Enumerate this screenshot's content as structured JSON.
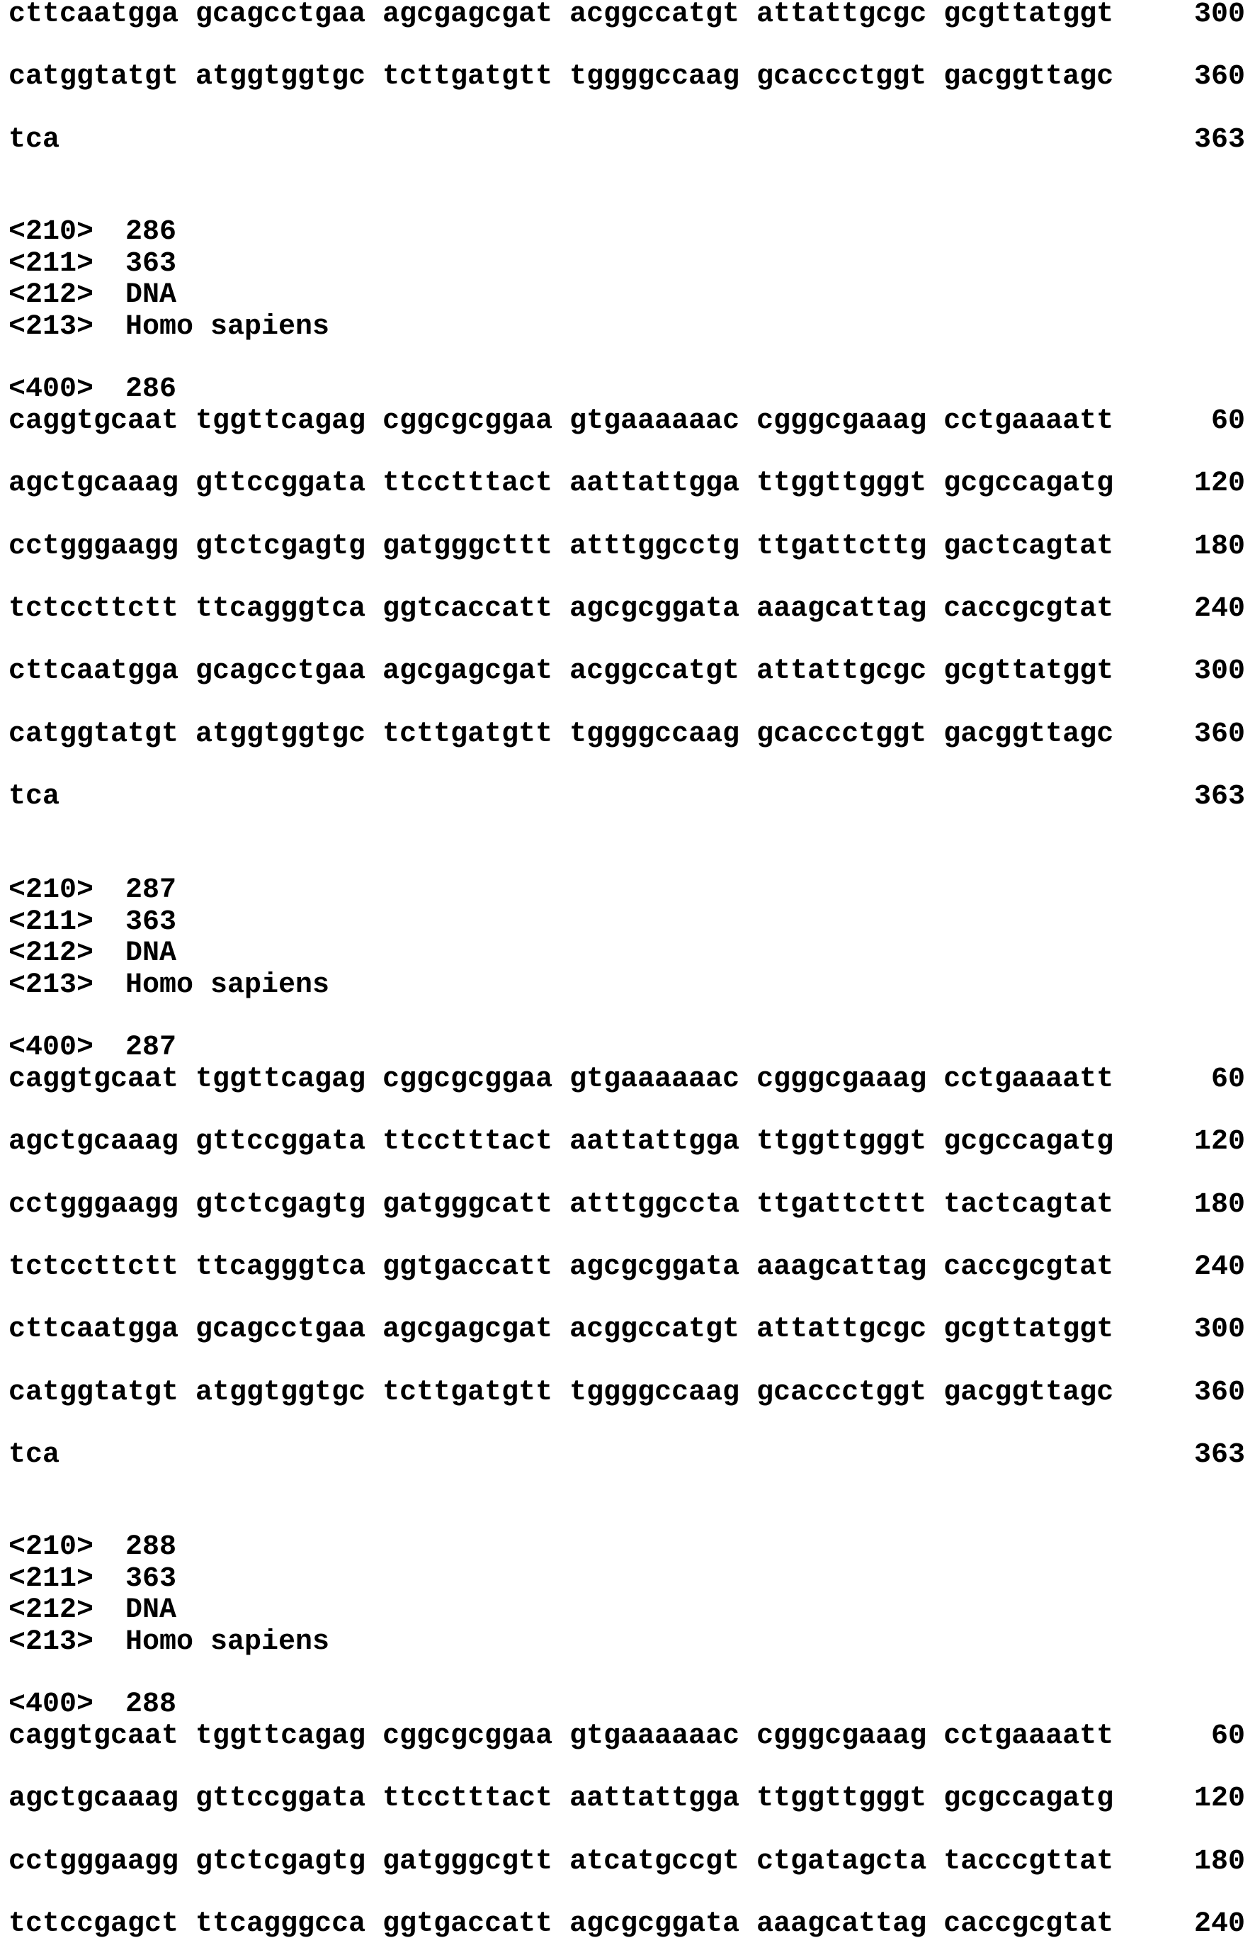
{
  "continuation": {
    "lines": [
      {
        "seq": "cttcaatgga gcagcctgaa agcgagcgat acggccatgt attattgcgc gcgttatggt",
        "pos": "300"
      },
      {
        "seq": "catggtatgt atggtggtgc tcttgatgtt tggggccaag gcaccctggt gacggttagc",
        "pos": "360"
      },
      {
        "seq": "tca",
        "pos": "363"
      }
    ]
  },
  "entries": [
    {
      "fields": [
        {
          "tag": "<210>",
          "value": "286"
        },
        {
          "tag": "<211>",
          "value": "363"
        },
        {
          "tag": "<212>",
          "value": "DNA"
        },
        {
          "tag": "<213>",
          "value": "Homo sapiens"
        }
      ],
      "seq_header": {
        "tag": "<400>",
        "value": "286"
      },
      "lines": [
        {
          "seq": "caggtgcaat tggttcagag cggcgcggaa gtgaaaaaac cgggcgaaag cctgaaaatt",
          "pos": "60"
        },
        {
          "seq": "agctgcaaag gttccggata ttcctttact aattattgga ttggttgggt gcgccagatg",
          "pos": "120"
        },
        {
          "seq": "cctgggaagg gtctcgagtg gatgggcttt atttggcctg ttgattcttg gactcagtat",
          "pos": "180"
        },
        {
          "seq": "tctccttctt ttcagggtca ggtcaccatt agcgcggata aaagcattag caccgcgtat",
          "pos": "240"
        },
        {
          "seq": "cttcaatgga gcagcctgaa agcgagcgat acggccatgt attattgcgc gcgttatggt",
          "pos": "300"
        },
        {
          "seq": "catggtatgt atggtggtgc tcttgatgtt tggggccaag gcaccctggt gacggttagc",
          "pos": "360"
        },
        {
          "seq": "tca",
          "pos": "363"
        }
      ]
    },
    {
      "fields": [
        {
          "tag": "<210>",
          "value": "287"
        },
        {
          "tag": "<211>",
          "value": "363"
        },
        {
          "tag": "<212>",
          "value": "DNA"
        },
        {
          "tag": "<213>",
          "value": "Homo sapiens"
        }
      ],
      "seq_header": {
        "tag": "<400>",
        "value": "287"
      },
      "lines": [
        {
          "seq": "caggtgcaat tggttcagag cggcgcggaa gtgaaaaaac cgggcgaaag cctgaaaatt",
          "pos": "60"
        },
        {
          "seq": "agctgcaaag gttccggata ttcctttact aattattgga ttggttgggt gcgccagatg",
          "pos": "120"
        },
        {
          "seq": "cctgggaagg gtctcgagtg gatgggcatt atttggccta ttgattcttt tactcagtat",
          "pos": "180"
        },
        {
          "seq": "tctccttctt ttcagggtca ggtgaccatt agcgcggata aaagcattag caccgcgtat",
          "pos": "240"
        },
        {
          "seq": "cttcaatgga gcagcctgaa agcgagcgat acggccatgt attattgcgc gcgttatggt",
          "pos": "300"
        },
        {
          "seq": "catggtatgt atggtggtgc tcttgatgtt tggggccaag gcaccctggt gacggttagc",
          "pos": "360"
        },
        {
          "seq": "tca",
          "pos": "363"
        }
      ]
    },
    {
      "fields": [
        {
          "tag": "<210>",
          "value": "288"
        },
        {
          "tag": "<211>",
          "value": "363"
        },
        {
          "tag": "<212>",
          "value": "DNA"
        },
        {
          "tag": "<213>",
          "value": "Homo sapiens"
        }
      ],
      "seq_header": {
        "tag": "<400>",
        "value": "288"
      },
      "lines": [
        {
          "seq": "caggtgcaat tggttcagag cggcgcggaa gtgaaaaaac cgggcgaaag cctgaaaatt",
          "pos": "60"
        },
        {
          "seq": "agctgcaaag gttccggata ttcctttact aattattgga ttggttgggt gcgccagatg",
          "pos": "120"
        },
        {
          "seq": "cctgggaagg gtctcgagtg gatgggcgtt atcatgccgt ctgatagcta tacccgttat",
          "pos": "180"
        },
        {
          "seq": "tctccgagct ttcagggcca ggtgaccatt agcgcggata aaagcattag caccgcgtat",
          "pos": "240"
        }
      ]
    }
  ]
}
